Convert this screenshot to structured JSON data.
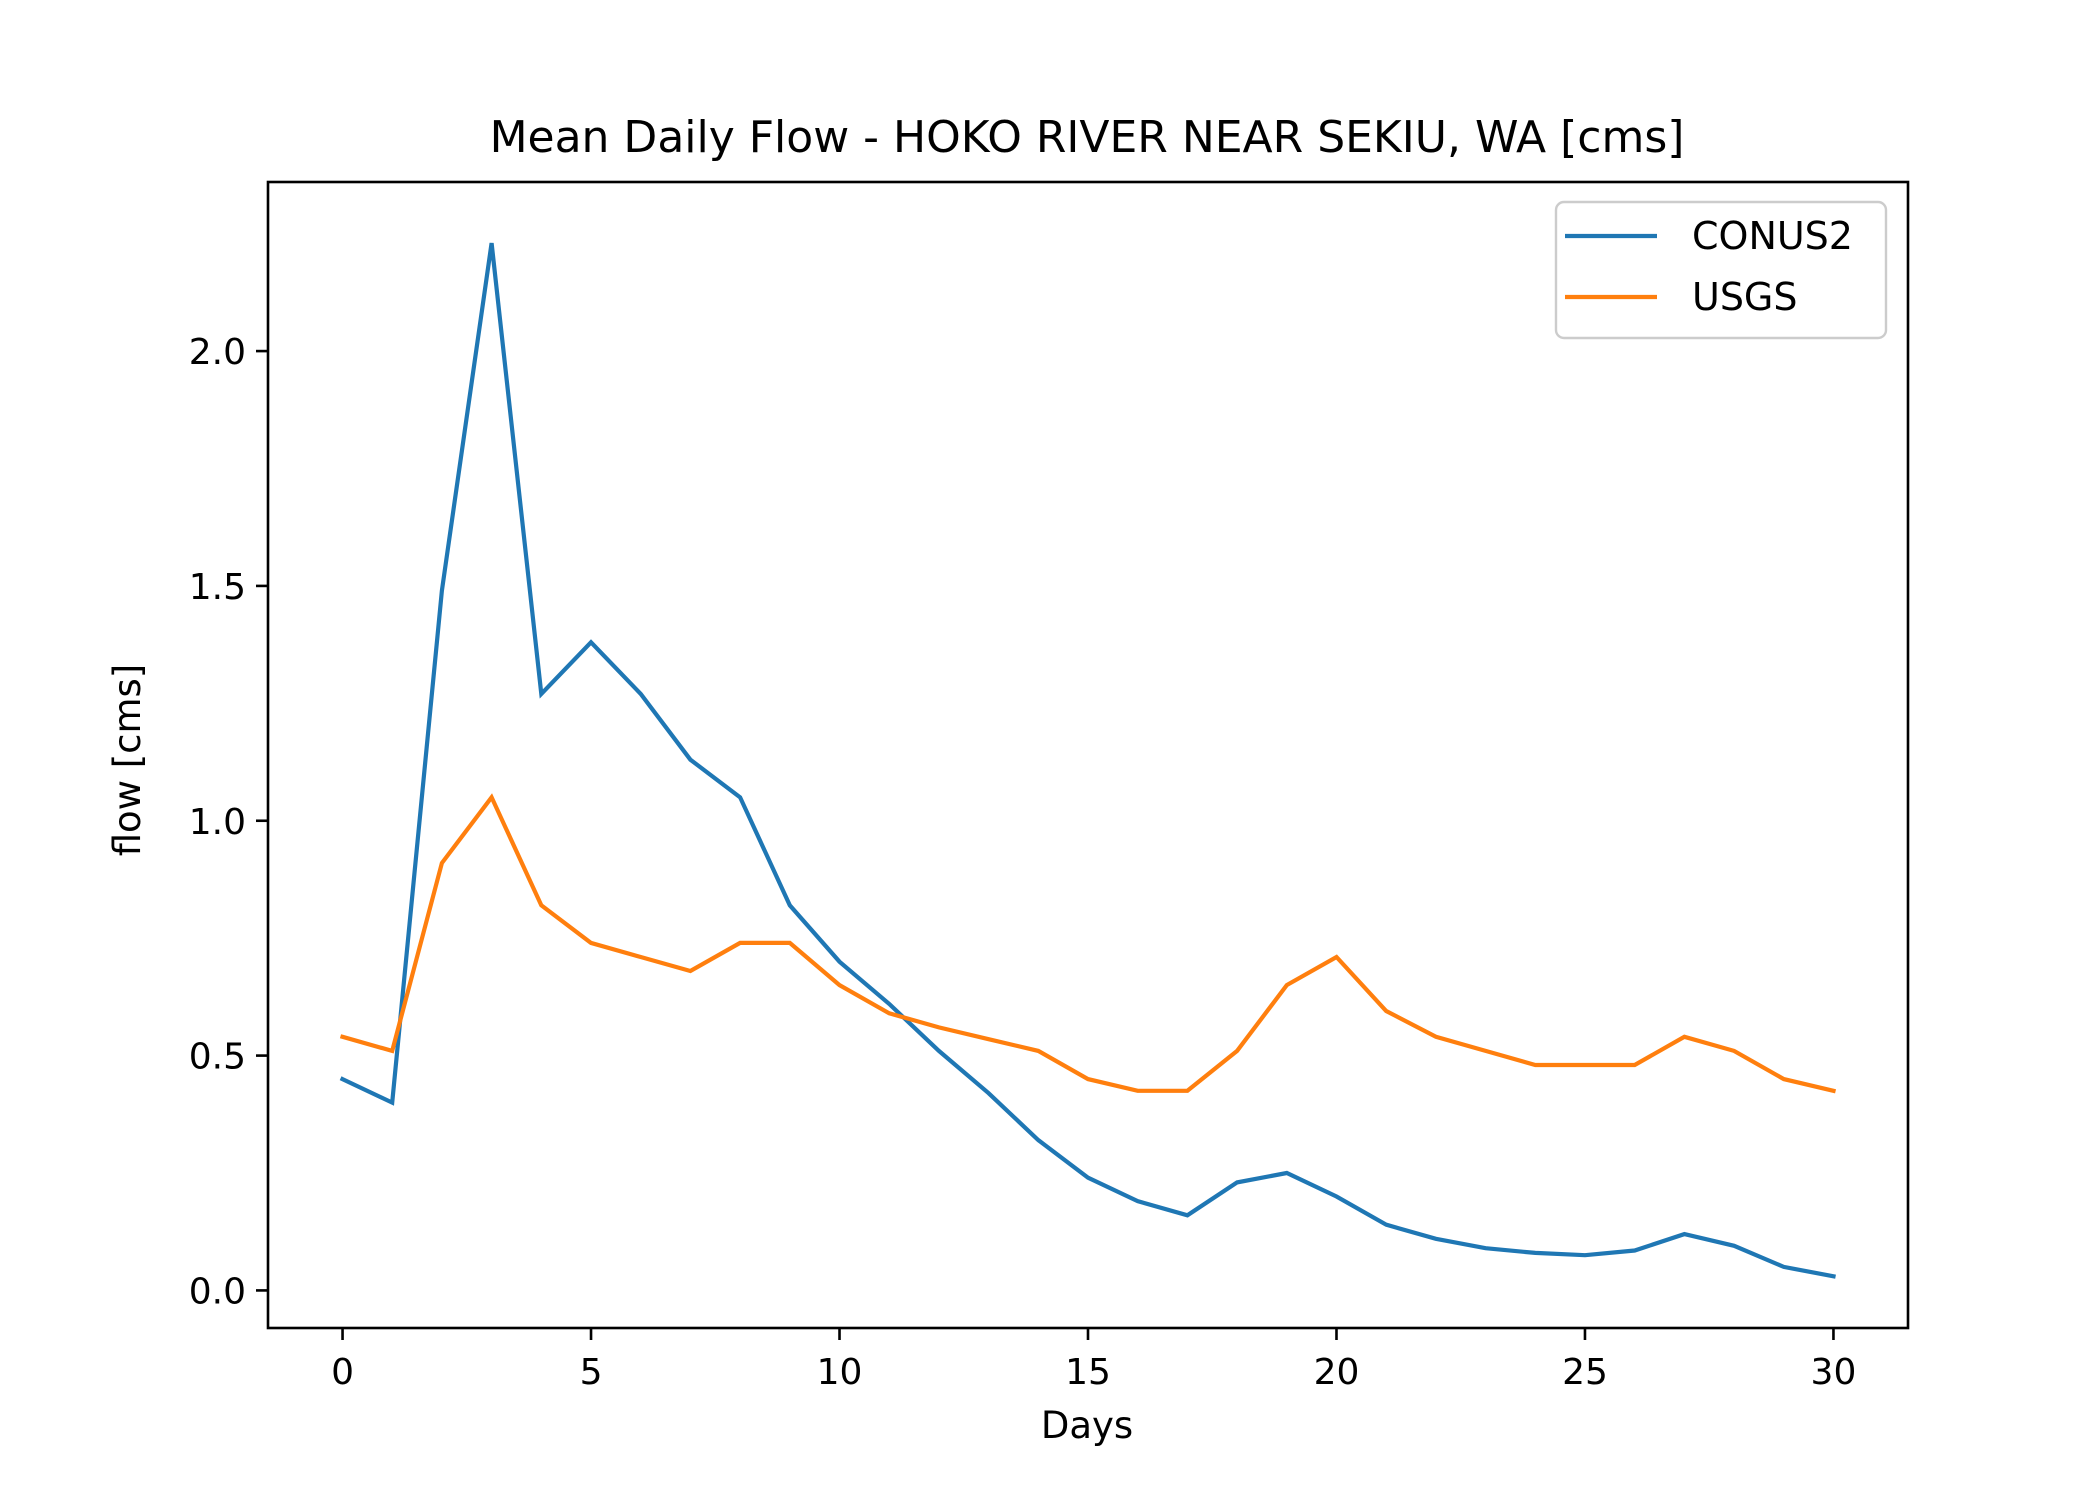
{
  "chart_data": {
    "type": "line",
    "title": "Mean Daily Flow - HOKO RIVER NEAR SEKIU, WA [cms]",
    "xlabel": "Days",
    "ylabel": "flow [cms]",
    "xlim": [
      -1.5,
      31.5
    ],
    "ylim": [
      -0.08,
      2.36
    ],
    "xticks": [
      0,
      5,
      10,
      15,
      20,
      25,
      30
    ],
    "xtick_labels": [
      "0",
      "5",
      "10",
      "15",
      "20",
      "25",
      "30"
    ],
    "yticks": [
      0.0,
      0.5,
      1.0,
      1.5,
      2.0
    ],
    "ytick_labels": [
      "0.0",
      "0.5",
      "1.0",
      "1.5",
      "2.0"
    ],
    "grid": false,
    "legend_position": "top-right",
    "x": [
      0,
      1,
      2,
      3,
      4,
      5,
      6,
      7,
      8,
      9,
      10,
      11,
      12,
      13,
      14,
      15,
      16,
      17,
      18,
      19,
      20,
      21,
      22,
      23,
      24,
      25,
      26,
      27,
      28,
      29,
      30
    ],
    "series": [
      {
        "name": "CONUS2",
        "color": "#1f77b4",
        "values": [
          0.45,
          0.4,
          1.49,
          2.23,
          1.27,
          1.38,
          1.27,
          1.13,
          1.05,
          0.82,
          0.7,
          0.61,
          0.51,
          0.42,
          0.32,
          0.24,
          0.19,
          0.16,
          0.23,
          0.25,
          0.2,
          0.14,
          0.11,
          0.09,
          0.08,
          0.075,
          0.085,
          0.12,
          0.095,
          0.05,
          0.03
        ]
      },
      {
        "name": "USGS",
        "color": "#ff7f0e",
        "values": [
          0.54,
          0.51,
          0.91,
          1.05,
          0.82,
          0.74,
          0.71,
          0.68,
          0.74,
          0.74,
          0.65,
          0.59,
          0.56,
          0.535,
          0.51,
          0.45,
          0.425,
          0.425,
          0.51,
          0.65,
          0.71,
          0.595,
          0.54,
          0.51,
          0.48,
          0.48,
          0.48,
          0.54,
          0.51,
          0.45,
          0.425
        ]
      }
    ]
  }
}
